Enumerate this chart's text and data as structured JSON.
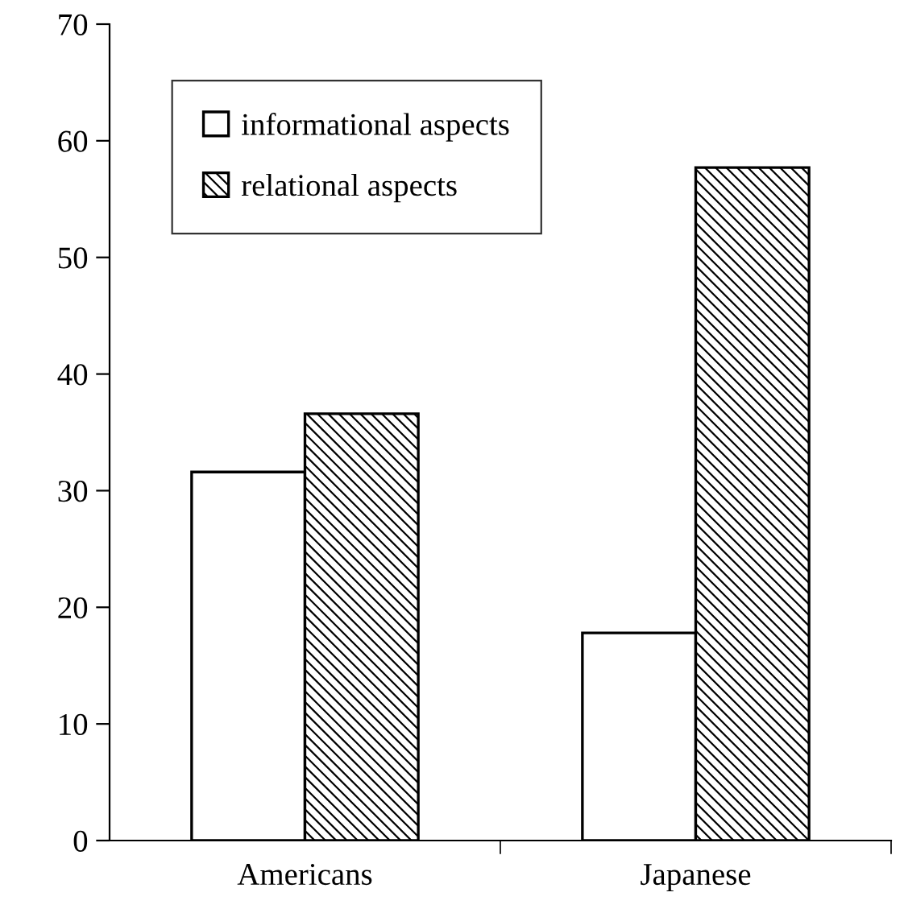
{
  "chart_data": {
    "type": "bar",
    "categories": [
      "Americans",
      "Japanese"
    ],
    "series": [
      {
        "name": "informational aspects",
        "color": "#ffffff",
        "values": [
          31.6,
          17.8
        ]
      },
      {
        "name": "relational aspects",
        "color": "#000000",
        "values": [
          36.6,
          57.7
        ]
      }
    ],
    "ylim": [
      0,
      70
    ],
    "yticks": [
      0,
      10,
      20,
      30,
      40,
      50,
      60,
      70
    ],
    "grid": false,
    "legend": "top left"
  }
}
